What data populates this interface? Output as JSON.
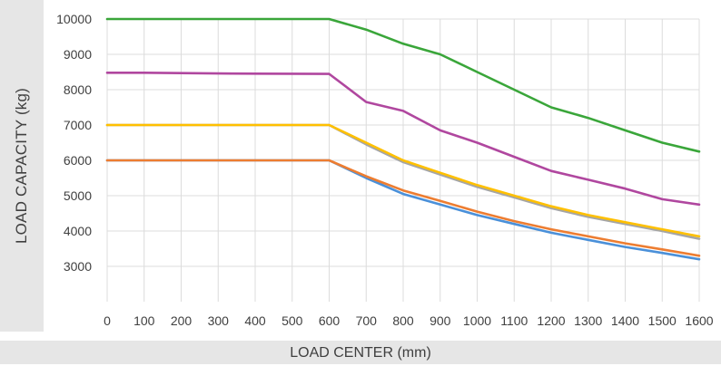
{
  "chart_data": {
    "type": "line",
    "title": "",
    "xlabel": "LOAD CENTER (mm)",
    "ylabel": "LOAD CAPACITY (kg)",
    "x": [
      0,
      100,
      200,
      300,
      400,
      500,
      600,
      700,
      800,
      900,
      1000,
      1100,
      1200,
      1300,
      1400,
      1500,
      1600
    ],
    "xlim": [
      0,
      1600
    ],
    "ylim": [
      2000,
      10000
    ],
    "yticks": [
      3000,
      4000,
      5000,
      6000,
      7000,
      8000,
      9000,
      10000
    ],
    "grid": true,
    "legend": "none",
    "series": [
      {
        "color": "#4a90d9",
        "values": [
          6000,
          6000,
          6000,
          6000,
          6000,
          6000,
          6000,
          5500,
          5050,
          4750,
          4450,
          4200,
          3950,
          3750,
          3550,
          3380,
          3200
        ]
      },
      {
        "color": "#ed7d31",
        "values": [
          6000,
          6000,
          6000,
          6000,
          6000,
          6000,
          6000,
          5550,
          5150,
          4850,
          4550,
          4280,
          4050,
          3850,
          3650,
          3480,
          3300
        ]
      },
      {
        "color": "#a5a5a5",
        "values": [
          7000,
          7000,
          7000,
          7000,
          7000,
          7000,
          7000,
          6450,
          5950,
          5600,
          5250,
          4950,
          4650,
          4400,
          4200,
          4000,
          3780
        ]
      },
      {
        "color": "#ffc000",
        "values": [
          7000,
          7000,
          7000,
          7000,
          7000,
          7000,
          7000,
          6500,
          6000,
          5650,
          5300,
          5000,
          4700,
          4450,
          4250,
          4050,
          3850
        ]
      },
      {
        "color": "#b0479f",
        "values": [
          8480,
          8480,
          8470,
          8460,
          8455,
          8450,
          8445,
          7650,
          7400,
          6850,
          6500,
          6100,
          5700,
          5450,
          5200,
          4900,
          4750
        ]
      },
      {
        "color": "#3aa63a",
        "values": [
          10000,
          10000,
          10000,
          10000,
          10000,
          10000,
          10000,
          9700,
          9300,
          9000,
          8500,
          8000,
          7500,
          7200,
          6850,
          6500,
          6250
        ]
      }
    ]
  }
}
